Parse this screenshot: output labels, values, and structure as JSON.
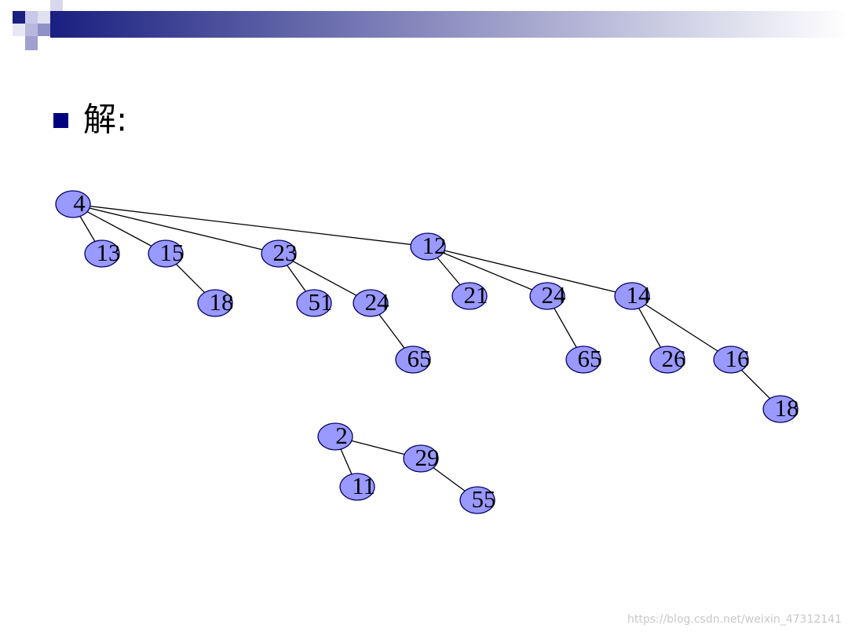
{
  "bullet": {
    "text": "解:"
  },
  "tree": {
    "nodes": [
      {
        "label": "4"
      },
      {
        "label": "13"
      },
      {
        "label": "15"
      },
      {
        "label": "23"
      },
      {
        "label": "12"
      },
      {
        "label": "18"
      },
      {
        "label": "51"
      },
      {
        "label": "24"
      },
      {
        "label": "21"
      },
      {
        "label": "24"
      },
      {
        "label": "14"
      },
      {
        "label": "65"
      },
      {
        "label": "65"
      },
      {
        "label": "26"
      },
      {
        "label": "16"
      },
      {
        "label": "18"
      },
      {
        "label": "2"
      },
      {
        "label": "29"
      },
      {
        "label": "11"
      },
      {
        "label": "55"
      }
    ]
  },
  "watermark": "https://blog.csdn.net/weixin_47312141"
}
